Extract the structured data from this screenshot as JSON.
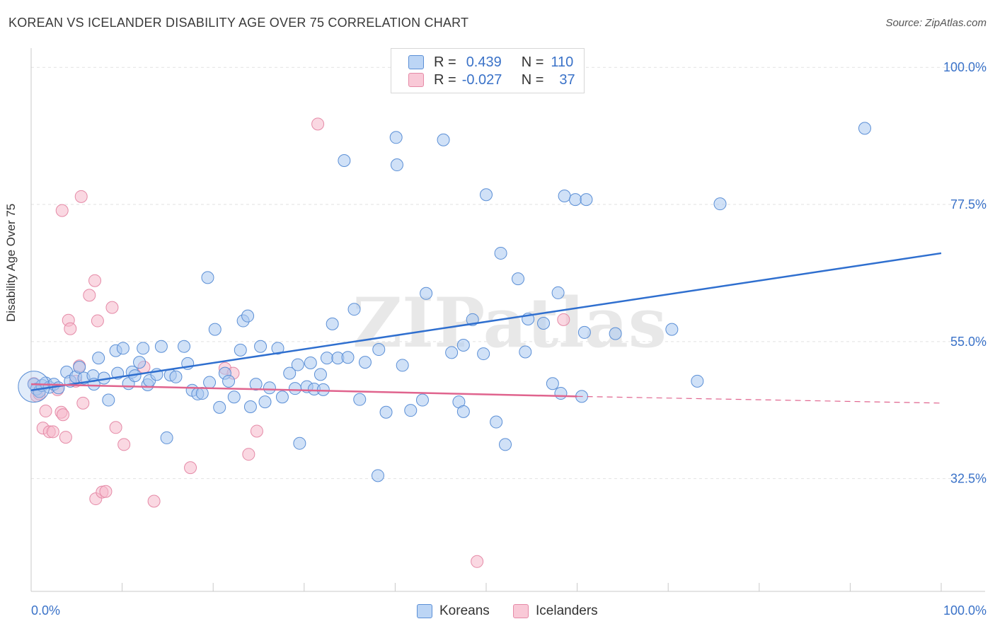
{
  "title": "KOREAN VS ICELANDER DISABILITY AGE OVER 75 CORRELATION CHART",
  "source": "Source: ZipAtlas.com",
  "watermark": "ZIPatlas",
  "legend": {
    "rows": [
      {
        "r_label": "R =",
        "r_value": "0.439",
        "n_label": "N =",
        "n_value": "110"
      },
      {
        "r_label": "R =",
        "r_value": "-0.027",
        "n_label": "N =",
        "n_value": "37"
      }
    ]
  },
  "bottom_legend": [
    "Koreans",
    "Icelanders"
  ],
  "colors": {
    "koreans_fill": "#a9c8f0",
    "koreans_stroke": "#5b8fd6",
    "koreans_line": "#2f6fcf",
    "icelanders_fill": "#f6b8cb",
    "icelanders_stroke": "#e58aa7",
    "icelanders_line": "#e0648e",
    "axis_text": "#3a72c8"
  },
  "chart_data": {
    "type": "scatter",
    "title": "KOREAN VS ICELANDER DISABILITY AGE OVER 75 CORRELATION CHART",
    "xlabel": "",
    "ylabel": "Disability Age Over 75",
    "xlim": [
      0,
      100
    ],
    "ylim": [
      14,
      102
    ],
    "x_tick_labels": [
      "0.0%",
      "100.0%"
    ],
    "y_ticks": [
      32.5,
      55.0,
      77.5,
      100.0
    ],
    "y_tick_labels": [
      "32.5%",
      "55.0%",
      "77.5%",
      "100.0%"
    ],
    "grid": "horizontal dashed",
    "legend_placement": "top-center",
    "series": [
      {
        "name": "Koreans",
        "trend": {
          "x": [
            0,
            100
          ],
          "y": [
            47.0,
            69.5
          ]
        },
        "points": [
          {
            "x": 0.3,
            "y": 48.0
          },
          {
            "x": 0.6,
            "y": 47.2
          },
          {
            "x": 0.9,
            "y": 46.8
          },
          {
            "x": 1.2,
            "y": 47.8
          },
          {
            "x": 1.6,
            "y": 48.2
          },
          {
            "x": 2.0,
            "y": 47.5
          },
          {
            "x": 2.5,
            "y": 48.0
          },
          {
            "x": 3.0,
            "y": 47.4
          },
          {
            "x": 3.9,
            "y": 50.0
          },
          {
            "x": 4.3,
            "y": 48.5
          },
          {
            "x": 4.9,
            "y": 49.2
          },
          {
            "x": 5.3,
            "y": 50.8
          },
          {
            "x": 5.8,
            "y": 49.0
          },
          {
            "x": 6.8,
            "y": 49.4
          },
          {
            "x": 6.9,
            "y": 48.0
          },
          {
            "x": 7.4,
            "y": 52.3
          },
          {
            "x": 8.0,
            "y": 49.0
          },
          {
            "x": 8.5,
            "y": 45.4
          },
          {
            "x": 9.3,
            "y": 53.5
          },
          {
            "x": 9.5,
            "y": 49.8
          },
          {
            "x": 10.1,
            "y": 53.9
          },
          {
            "x": 10.7,
            "y": 48.1
          },
          {
            "x": 11.1,
            "y": 50.0
          },
          {
            "x": 11.4,
            "y": 49.4
          },
          {
            "x": 11.9,
            "y": 51.6
          },
          {
            "x": 12.3,
            "y": 53.9
          },
          {
            "x": 12.8,
            "y": 47.9
          },
          {
            "x": 13.0,
            "y": 48.6
          },
          {
            "x": 13.8,
            "y": 49.6
          },
          {
            "x": 14.3,
            "y": 54.2
          },
          {
            "x": 14.9,
            "y": 39.2
          },
          {
            "x": 15.3,
            "y": 49.5
          },
          {
            "x": 15.9,
            "y": 49.2
          },
          {
            "x": 16.8,
            "y": 54.2
          },
          {
            "x": 17.2,
            "y": 51.4
          },
          {
            "x": 17.7,
            "y": 47.0
          },
          {
            "x": 18.3,
            "y": 46.4
          },
          {
            "x": 18.8,
            "y": 46.5
          },
          {
            "x": 19.4,
            "y": 65.5
          },
          {
            "x": 19.6,
            "y": 48.3
          },
          {
            "x": 20.2,
            "y": 57.0
          },
          {
            "x": 20.7,
            "y": 44.2
          },
          {
            "x": 21.3,
            "y": 49.8
          },
          {
            "x": 21.7,
            "y": 48.5
          },
          {
            "x": 22.3,
            "y": 45.9
          },
          {
            "x": 23.0,
            "y": 53.6
          },
          {
            "x": 23.3,
            "y": 58.4
          },
          {
            "x": 23.8,
            "y": 59.2
          },
          {
            "x": 24.1,
            "y": 44.3
          },
          {
            "x": 24.7,
            "y": 48.0
          },
          {
            "x": 25.2,
            "y": 54.2
          },
          {
            "x": 25.7,
            "y": 45.1
          },
          {
            "x": 26.2,
            "y": 47.4
          },
          {
            "x": 27.1,
            "y": 53.9
          },
          {
            "x": 27.6,
            "y": 45.9
          },
          {
            "x": 28.4,
            "y": 49.8
          },
          {
            "x": 29.3,
            "y": 51.2
          },
          {
            "x": 29.0,
            "y": 47.3
          },
          {
            "x": 29.5,
            "y": 38.3
          },
          {
            "x": 30.3,
            "y": 47.6
          },
          {
            "x": 30.7,
            "y": 51.5
          },
          {
            "x": 31.1,
            "y": 47.2
          },
          {
            "x": 31.8,
            "y": 49.6
          },
          {
            "x": 32.1,
            "y": 47.1
          },
          {
            "x": 32.5,
            "y": 52.3
          },
          {
            "x": 33.1,
            "y": 57.9
          },
          {
            "x": 33.7,
            "y": 52.3
          },
          {
            "x": 34.4,
            "y": 84.7
          },
          {
            "x": 34.8,
            "y": 52.4
          },
          {
            "x": 35.5,
            "y": 60.3
          },
          {
            "x": 36.1,
            "y": 45.5
          },
          {
            "x": 36.7,
            "y": 51.6
          },
          {
            "x": 38.1,
            "y": 33.0
          },
          {
            "x": 38.2,
            "y": 53.7
          },
          {
            "x": 39.0,
            "y": 43.4
          },
          {
            "x": 40.1,
            "y": 88.5
          },
          {
            "x": 40.2,
            "y": 84.0
          },
          {
            "x": 40.8,
            "y": 51.1
          },
          {
            "x": 41.7,
            "y": 43.7
          },
          {
            "x": 43.0,
            "y": 45.4
          },
          {
            "x": 43.4,
            "y": 62.9
          },
          {
            "x": 45.3,
            "y": 88.1
          },
          {
            "x": 46.2,
            "y": 53.2
          },
          {
            "x": 47.0,
            "y": 45.1
          },
          {
            "x": 47.5,
            "y": 43.5
          },
          {
            "x": 47.5,
            "y": 54.4
          },
          {
            "x": 48.5,
            "y": 58.6
          },
          {
            "x": 49.7,
            "y": 53.0
          },
          {
            "x": 50.0,
            "y": 79.1
          },
          {
            "x": 51.1,
            "y": 41.8
          },
          {
            "x": 51.6,
            "y": 69.5
          },
          {
            "x": 52.1,
            "y": 38.1
          },
          {
            "x": 53.5,
            "y": 65.3
          },
          {
            "x": 54.3,
            "y": 53.3
          },
          {
            "x": 54.6,
            "y": 58.7
          },
          {
            "x": 56.3,
            "y": 58.0
          },
          {
            "x": 57.3,
            "y": 48.1
          },
          {
            "x": 57.9,
            "y": 63.0
          },
          {
            "x": 58.2,
            "y": 46.5
          },
          {
            "x": 58.6,
            "y": 78.9
          },
          {
            "x": 59.8,
            "y": 78.3
          },
          {
            "x": 60.5,
            "y": 46.0
          },
          {
            "x": 60.8,
            "y": 56.5
          },
          {
            "x": 61.0,
            "y": 78.3
          },
          {
            "x": 64.2,
            "y": 56.3
          },
          {
            "x": 70.4,
            "y": 57.0
          },
          {
            "x": 73.2,
            "y": 48.5
          },
          {
            "x": 75.7,
            "y": 77.6
          },
          {
            "x": 91.6,
            "y": 90.0
          }
        ]
      },
      {
        "name": "Icelanders",
        "trend": {
          "x": [
            0,
            60
          ],
          "y": [
            48.0,
            46.0
          ]
        },
        "trend_dashed": {
          "x": [
            60,
            100
          ],
          "y": [
            46.0,
            44.9
          ]
        },
        "points": [
          {
            "x": 0.3,
            "y": 48.1
          },
          {
            "x": 0.6,
            "y": 46.1
          },
          {
            "x": 0.9,
            "y": 46.4
          },
          {
            "x": 1.3,
            "y": 40.8
          },
          {
            "x": 1.6,
            "y": 43.6
          },
          {
            "x": 2.0,
            "y": 40.2
          },
          {
            "x": 2.4,
            "y": 40.2
          },
          {
            "x": 2.9,
            "y": 47.1
          },
          {
            "x": 3.3,
            "y": 43.4
          },
          {
            "x": 3.5,
            "y": 43.0
          },
          {
            "x": 3.4,
            "y": 76.5
          },
          {
            "x": 3.8,
            "y": 39.3
          },
          {
            "x": 4.1,
            "y": 58.5
          },
          {
            "x": 4.3,
            "y": 57.1
          },
          {
            "x": 4.9,
            "y": 48.5
          },
          {
            "x": 5.3,
            "y": 51.0
          },
          {
            "x": 5.5,
            "y": 78.8
          },
          {
            "x": 5.7,
            "y": 44.9
          },
          {
            "x": 6.4,
            "y": 62.6
          },
          {
            "x": 7.0,
            "y": 65.0
          },
          {
            "x": 7.3,
            "y": 58.4
          },
          {
            "x": 7.1,
            "y": 29.2
          },
          {
            "x": 7.8,
            "y": 30.3
          },
          {
            "x": 8.2,
            "y": 30.4
          },
          {
            "x": 8.9,
            "y": 60.6
          },
          {
            "x": 9.3,
            "y": 40.9
          },
          {
            "x": 10.2,
            "y": 38.1
          },
          {
            "x": 12.4,
            "y": 50.8
          },
          {
            "x": 13.5,
            "y": 28.8
          },
          {
            "x": 17.5,
            "y": 34.3
          },
          {
            "x": 21.3,
            "y": 50.6
          },
          {
            "x": 22.2,
            "y": 49.8
          },
          {
            "x": 23.9,
            "y": 36.5
          },
          {
            "x": 24.8,
            "y": 40.3
          },
          {
            "x": 31.5,
            "y": 90.7
          },
          {
            "x": 49.0,
            "y": 18.9
          },
          {
            "x": 58.5,
            "y": 58.6
          }
        ]
      }
    ]
  }
}
